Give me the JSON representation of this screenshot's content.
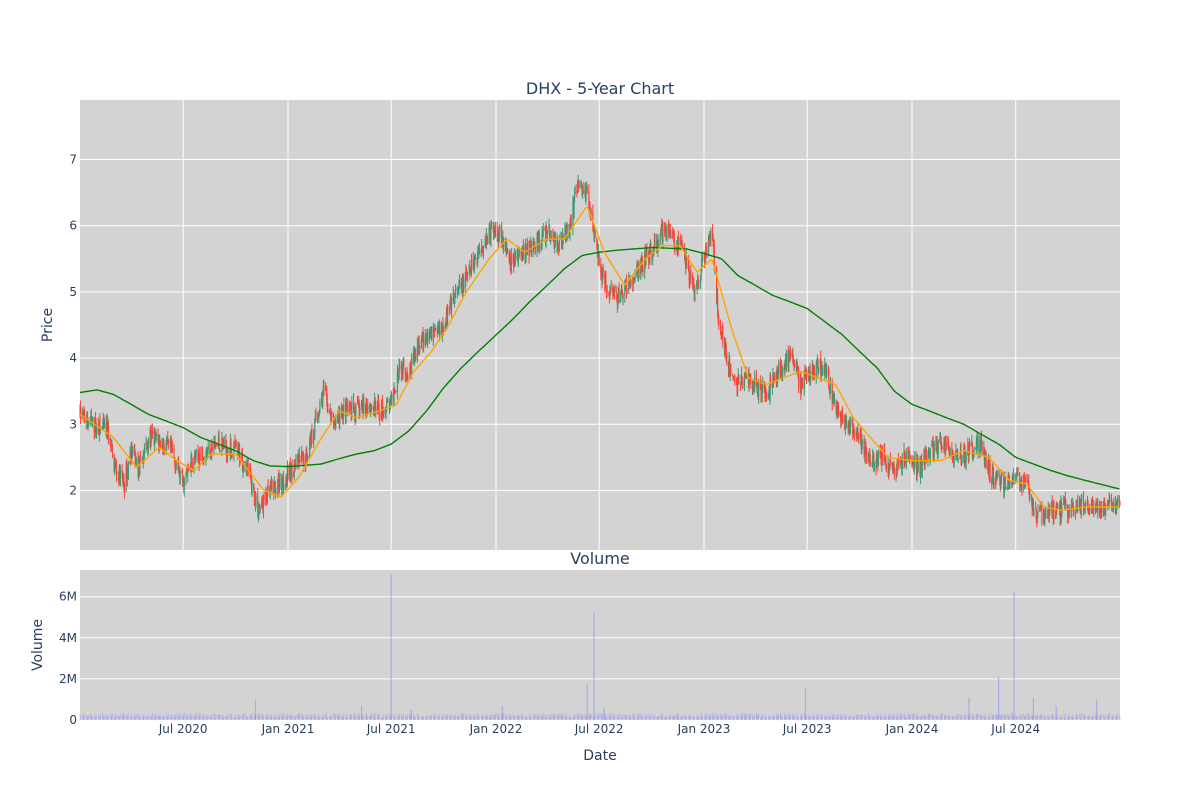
{
  "chart_data": [
    {
      "type": "candlestick",
      "title": "DHX - 5-Year Chart",
      "ylabel": "Price",
      "ylim": [
        1.1,
        7.9
      ],
      "yticks": [
        "2",
        "3",
        "4",
        "5",
        "6",
        "7"
      ],
      "grid": true,
      "colors": {
        "up": "#3d9970",
        "down": "#ff4136",
        "ma_short": "#ffa500",
        "ma_long": "#008000",
        "plot_bg": "#d3d3d3",
        "grid": "#ffffff"
      },
      "x_range": [
        "2020-01-02",
        "2024-12-31"
      ],
      "price_anchors": [
        [
          "2020-01-02",
          3.15
        ],
        [
          "2020-02-01",
          2.95
        ],
        [
          "2020-02-20",
          2.9
        ],
        [
          "2020-03-01",
          2.4
        ],
        [
          "2020-03-20",
          2.1
        ],
        [
          "2020-04-01",
          2.6
        ],
        [
          "2020-04-15",
          2.3
        ],
        [
          "2020-05-01",
          2.8
        ],
        [
          "2020-05-20",
          2.75
        ],
        [
          "2020-06-10",
          2.6
        ],
        [
          "2020-07-01",
          2.1
        ],
        [
          "2020-07-15",
          2.4
        ],
        [
          "2020-08-01",
          2.55
        ],
        [
          "2020-09-01",
          2.7
        ],
        [
          "2020-10-01",
          2.6
        ],
        [
          "2020-10-20",
          2.4
        ],
        [
          "2020-11-10",
          1.7
        ],
        [
          "2020-12-01",
          2.0
        ],
        [
          "2020-12-20",
          2.1
        ],
        [
          "2021-01-15",
          2.4
        ],
        [
          "2021-02-01",
          2.5
        ],
        [
          "2021-02-20",
          3.1
        ],
        [
          "2021-03-05",
          3.5
        ],
        [
          "2021-03-20",
          3.0
        ],
        [
          "2021-04-10",
          3.2
        ],
        [
          "2021-05-01",
          3.2
        ],
        [
          "2021-05-20",
          3.3
        ],
        [
          "2021-06-10",
          3.2
        ],
        [
          "2021-07-01",
          3.3
        ],
        [
          "2021-07-15",
          3.9
        ],
        [
          "2021-08-01",
          3.8
        ],
        [
          "2021-08-20",
          4.2
        ],
        [
          "2021-09-10",
          4.4
        ],
        [
          "2021-10-01",
          4.5
        ],
        [
          "2021-10-20",
          4.9
        ],
        [
          "2021-11-10",
          5.2
        ],
        [
          "2021-12-01",
          5.6
        ],
        [
          "2021-12-20",
          5.9
        ],
        [
          "2022-01-10",
          5.9
        ],
        [
          "2022-01-25",
          5.4
        ],
        [
          "2022-02-15",
          5.6
        ],
        [
          "2022-03-10",
          5.7
        ],
        [
          "2022-04-01",
          5.9
        ],
        [
          "2022-04-20",
          5.7
        ],
        [
          "2022-05-10",
          6.0
        ],
        [
          "2022-05-25",
          6.6
        ],
        [
          "2022-06-10",
          6.5
        ],
        [
          "2022-06-25",
          5.8
        ],
        [
          "2022-07-10",
          5.1
        ],
        [
          "2022-08-01",
          4.9
        ],
        [
          "2022-08-15",
          5.0
        ],
        [
          "2022-09-01",
          5.2
        ],
        [
          "2022-09-20",
          5.5
        ],
        [
          "2022-10-10",
          5.7
        ],
        [
          "2022-10-25",
          6.0
        ],
        [
          "2022-11-10",
          5.8
        ],
        [
          "2022-11-25",
          5.6
        ],
        [
          "2022-12-15",
          5.0
        ],
        [
          "2023-01-01",
          5.5
        ],
        [
          "2023-01-15",
          5.9
        ],
        [
          "2023-01-25",
          4.7
        ],
        [
          "2023-02-10",
          4.0
        ],
        [
          "2023-02-25",
          3.6
        ],
        [
          "2023-03-15",
          3.7
        ],
        [
          "2023-04-01",
          3.6
        ],
        [
          "2023-04-20",
          3.4
        ],
        [
          "2023-05-10",
          3.8
        ],
        [
          "2023-06-01",
          4.0
        ],
        [
          "2023-06-20",
          3.6
        ],
        [
          "2023-07-10",
          3.8
        ],
        [
          "2023-08-01",
          3.9
        ],
        [
          "2023-08-20",
          3.2
        ],
        [
          "2023-09-10",
          3.0
        ],
        [
          "2023-10-01",
          2.8
        ],
        [
          "2023-10-20",
          2.4
        ],
        [
          "2023-11-10",
          2.5
        ],
        [
          "2023-12-01",
          2.3
        ],
        [
          "2023-12-20",
          2.5
        ],
        [
          "2024-01-15",
          2.3
        ],
        [
          "2024-02-01",
          2.6
        ],
        [
          "2024-03-01",
          2.7
        ],
        [
          "2024-03-20",
          2.5
        ],
        [
          "2024-04-10",
          2.6
        ],
        [
          "2024-05-01",
          2.7
        ],
        [
          "2024-05-20",
          2.2
        ],
        [
          "2024-06-10",
          2.1
        ],
        [
          "2024-07-01",
          2.2
        ],
        [
          "2024-07-20",
          2.1
        ],
        [
          "2024-08-05",
          1.6
        ],
        [
          "2024-08-20",
          1.65
        ],
        [
          "2024-09-10",
          1.7
        ],
        [
          "2024-10-01",
          1.75
        ],
        [
          "2024-11-01",
          1.8
        ],
        [
          "2024-12-01",
          1.75
        ],
        [
          "2024-12-31",
          1.8
        ]
      ],
      "ma_short_anchors": [
        [
          "2020-01-02",
          3.15
        ],
        [
          "2020-03-01",
          2.8
        ],
        [
          "2020-04-10",
          2.35
        ],
        [
          "2020-05-20",
          2.65
        ],
        [
          "2020-06-20",
          2.45
        ],
        [
          "2020-07-20",
          2.3
        ],
        [
          "2020-08-20",
          2.55
        ],
        [
          "2020-10-01",
          2.55
        ],
        [
          "2020-11-20",
          2.0
        ],
        [
          "2020-12-20",
          1.9
        ],
        [
          "2021-01-20",
          2.2
        ],
        [
          "2021-03-01",
          2.8
        ],
        [
          "2021-04-01",
          3.2
        ],
        [
          "2021-05-01",
          3.1
        ],
        [
          "2021-06-10",
          3.2
        ],
        [
          "2021-07-10",
          3.3
        ],
        [
          "2021-08-10",
          3.8
        ],
        [
          "2021-09-10",
          4.1
        ],
        [
          "2021-10-10",
          4.5
        ],
        [
          "2021-11-10",
          5.0
        ],
        [
          "2021-12-20",
          5.5
        ],
        [
          "2022-01-20",
          5.8
        ],
        [
          "2022-02-20",
          5.6
        ],
        [
          "2022-04-01",
          5.8
        ],
        [
          "2022-05-01",
          5.8
        ],
        [
          "2022-06-10",
          6.3
        ],
        [
          "2022-07-10",
          5.6
        ],
        [
          "2022-08-15",
          5.1
        ],
        [
          "2022-09-20",
          5.5
        ],
        [
          "2022-10-20",
          5.7
        ],
        [
          "2022-11-20",
          5.7
        ],
        [
          "2022-12-20",
          5.3
        ],
        [
          "2023-01-15",
          5.5
        ],
        [
          "2023-02-20",
          4.4
        ],
        [
          "2023-03-20",
          3.7
        ],
        [
          "2023-04-20",
          3.6
        ],
        [
          "2023-05-20",
          3.7
        ],
        [
          "2023-06-20",
          3.8
        ],
        [
          "2023-07-20",
          3.7
        ],
        [
          "2023-08-20",
          3.6
        ],
        [
          "2023-09-20",
          3.1
        ],
        [
          "2023-10-20",
          2.8
        ],
        [
          "2023-11-20",
          2.5
        ],
        [
          "2024-01-01",
          2.45
        ],
        [
          "2024-02-20",
          2.45
        ],
        [
          "2024-04-01",
          2.6
        ],
        [
          "2024-05-15",
          2.5
        ],
        [
          "2024-06-20",
          2.15
        ],
        [
          "2024-07-20",
          2.1
        ],
        [
          "2024-08-20",
          1.75
        ],
        [
          "2024-09-20",
          1.7
        ],
        [
          "2024-11-01",
          1.75
        ],
        [
          "2024-12-31",
          1.75
        ]
      ],
      "ma_long_anchors": [
        [
          "2020-01-02",
          3.48
        ],
        [
          "2020-02-01",
          3.52
        ],
        [
          "2020-03-01",
          3.45
        ],
        [
          "2020-04-01",
          3.3
        ],
        [
          "2020-05-01",
          3.15
        ],
        [
          "2020-06-01",
          3.05
        ],
        [
          "2020-07-01",
          2.95
        ],
        [
          "2020-08-01",
          2.8
        ],
        [
          "2020-09-01",
          2.7
        ],
        [
          "2020-10-01",
          2.6
        ],
        [
          "2020-11-01",
          2.45
        ],
        [
          "2020-12-01",
          2.37
        ],
        [
          "2021-01-01",
          2.36
        ],
        [
          "2021-03-01",
          2.4
        ],
        [
          "2021-04-01",
          2.48
        ],
        [
          "2021-05-01",
          2.55
        ],
        [
          "2021-06-01",
          2.6
        ],
        [
          "2021-07-01",
          2.7
        ],
        [
          "2021-08-01",
          2.9
        ],
        [
          "2021-09-01",
          3.2
        ],
        [
          "2021-10-01",
          3.55
        ],
        [
          "2021-11-01",
          3.85
        ],
        [
          "2021-12-01",
          4.1
        ],
        [
          "2022-01-01",
          4.35
        ],
        [
          "2022-02-01",
          4.6
        ],
        [
          "2022-03-01",
          4.85
        ],
        [
          "2022-04-01",
          5.1
        ],
        [
          "2022-05-01",
          5.35
        ],
        [
          "2022-06-01",
          5.55
        ],
        [
          "2022-07-01",
          5.6
        ],
        [
          "2022-08-01",
          5.63
        ],
        [
          "2022-10-01",
          5.67
        ],
        [
          "2022-12-01",
          5.65
        ],
        [
          "2023-01-01",
          5.58
        ],
        [
          "2023-02-01",
          5.5
        ],
        [
          "2023-03-01",
          5.25
        ],
        [
          "2023-04-01",
          5.1
        ],
        [
          "2023-05-01",
          4.95
        ],
        [
          "2023-06-01",
          4.85
        ],
        [
          "2023-07-01",
          4.75
        ],
        [
          "2023-08-01",
          4.55
        ],
        [
          "2023-09-01",
          4.35
        ],
        [
          "2023-10-01",
          4.1
        ],
        [
          "2023-11-01",
          3.85
        ],
        [
          "2023-12-01",
          3.5
        ],
        [
          "2024-01-01",
          3.3
        ],
        [
          "2024-02-01",
          3.2
        ],
        [
          "2024-03-01",
          3.1
        ],
        [
          "2024-04-01",
          3.0
        ],
        [
          "2024-05-01",
          2.85
        ],
        [
          "2024-06-01",
          2.7
        ],
        [
          "2024-07-01",
          2.5
        ],
        [
          "2024-08-01",
          2.4
        ],
        [
          "2024-09-01",
          2.3
        ],
        [
          "2024-10-01",
          2.22
        ],
        [
          "2024-11-01",
          2.15
        ],
        [
          "2024-12-31",
          2.02
        ]
      ]
    },
    {
      "type": "bar",
      "title": "Volume",
      "xlabel": "Date",
      "ylabel": "Volume",
      "ylim": [
        0,
        7300000
      ],
      "yticks": [
        {
          "value": 0,
          "label": "0"
        },
        {
          "value": 2000000,
          "label": "2M"
        },
        {
          "value": 4000000,
          "label": "4M"
        },
        {
          "value": 6000000,
          "label": "6M"
        }
      ],
      "xticks": [
        {
          "date": "2020-07-01",
          "label": "Jul 2020"
        },
        {
          "date": "2021-01-01",
          "label": "Jan 2021"
        },
        {
          "date": "2021-07-01",
          "label": "Jul 2021"
        },
        {
          "date": "2022-01-01",
          "label": "Jan 2022"
        },
        {
          "date": "2022-07-01",
          "label": "Jul 2022"
        },
        {
          "date": "2023-01-01",
          "label": "Jan 2023"
        },
        {
          "date": "2023-07-01",
          "label": "Jul 2023"
        },
        {
          "date": "2024-01-01",
          "label": "Jan 2024"
        },
        {
          "date": "2024-07-01",
          "label": "Jul 2024"
        }
      ],
      "color": "#9999ee",
      "spikes": [
        [
          "2020-11-05",
          1000000
        ],
        [
          "2021-05-10",
          700000
        ],
        [
          "2021-07-01",
          7100000
        ],
        [
          "2021-08-05",
          500000
        ],
        [
          "2022-01-12",
          700000
        ],
        [
          "2022-06-10",
          1800000
        ],
        [
          "2022-06-22",
          5200000
        ],
        [
          "2022-07-10",
          600000
        ],
        [
          "2023-06-28",
          1600000
        ],
        [
          "2024-04-10",
          1100000
        ],
        [
          "2024-06-01",
          2100000
        ],
        [
          "2024-06-28",
          6200000
        ],
        [
          "2024-08-01",
          1100000
        ],
        [
          "2024-09-10",
          700000
        ],
        [
          "2024-11-20",
          1000000
        ]
      ]
    }
  ]
}
